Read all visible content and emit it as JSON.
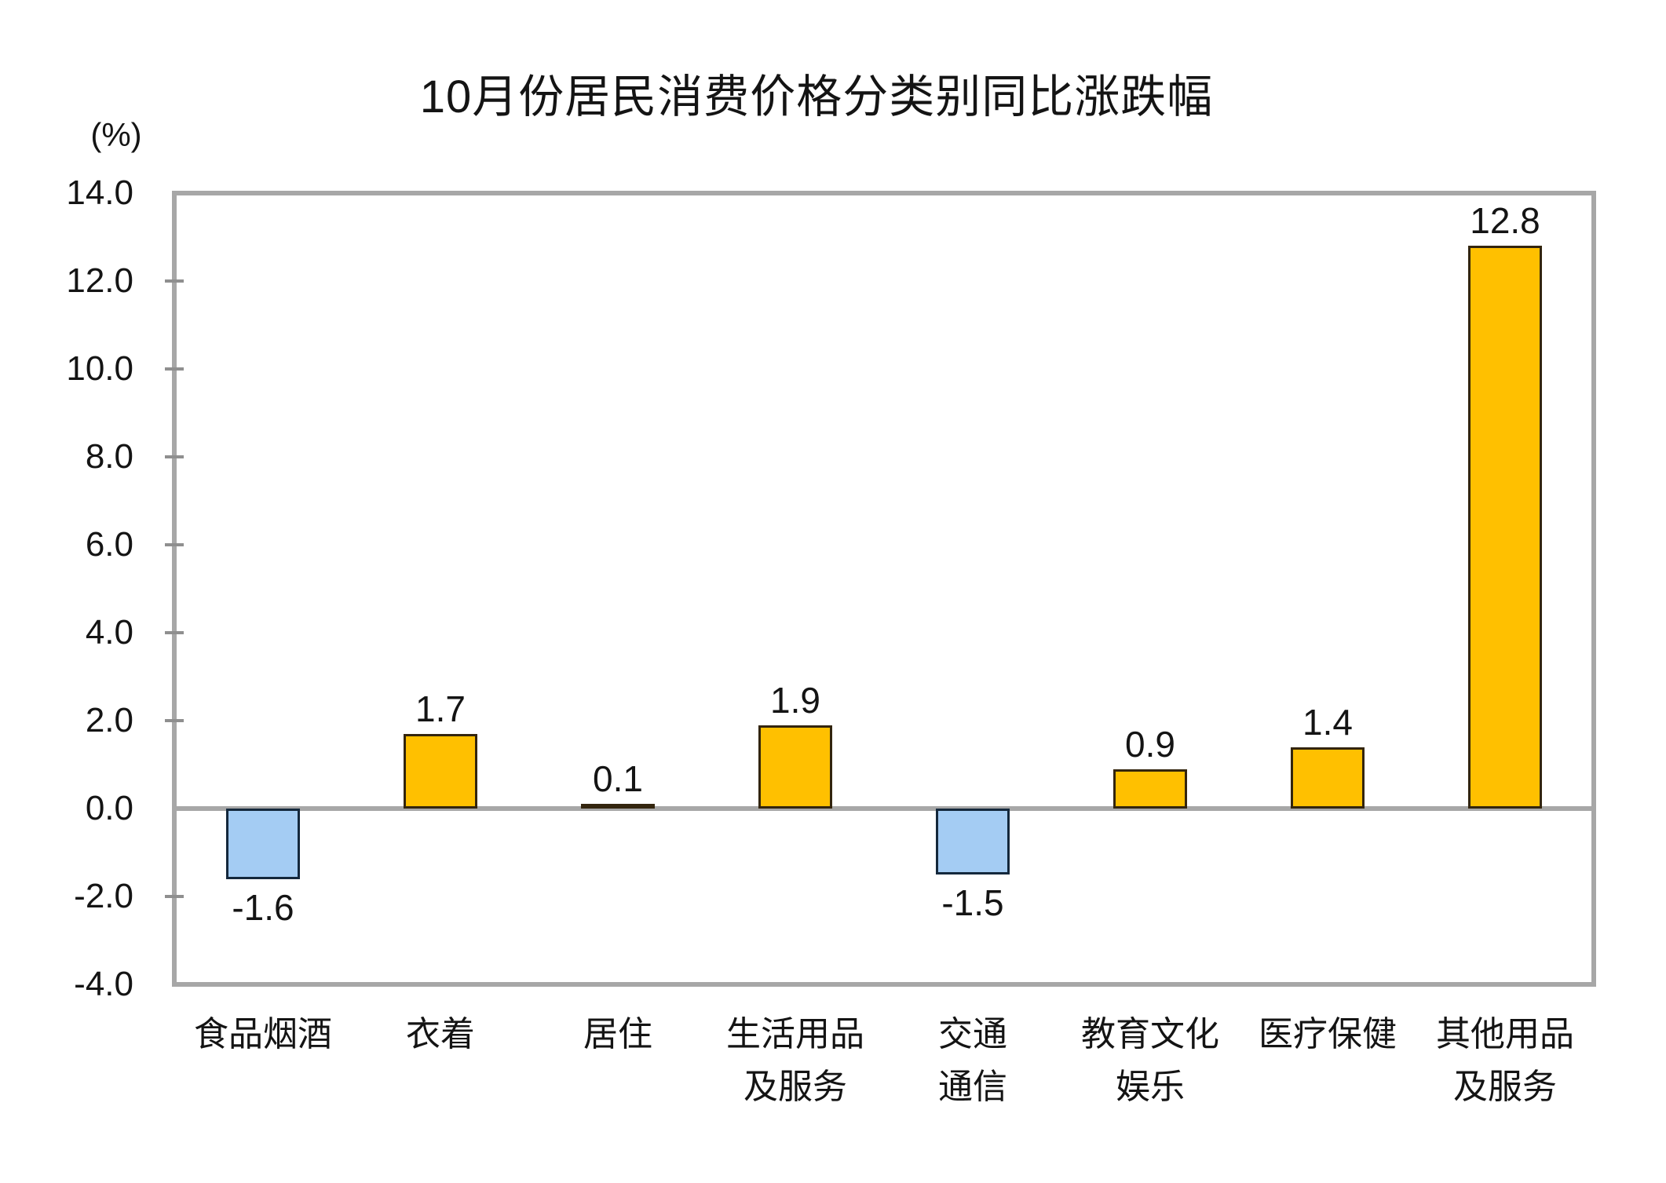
{
  "chart_data": {
    "type": "bar",
    "title": "10月份居民消费价格分类别同比涨跌幅",
    "unit_label": "(%)",
    "categories": [
      "食品烟酒",
      "衣着",
      "居住",
      "生活用品\n及服务",
      "交通\n通信",
      "教育文化\n娱乐",
      "医疗保健",
      "其他用品\n及服务"
    ],
    "values": [
      -1.6,
      1.7,
      0.1,
      1.9,
      -1.5,
      0.9,
      1.4,
      12.8
    ],
    "value_labels": [
      "-1.6",
      "1.7",
      "0.1",
      "1.9",
      "-1.5",
      "0.9",
      "1.4",
      "12.8"
    ],
    "y_ticks": [
      14,
      12,
      10,
      8,
      6,
      4,
      2,
      0,
      -2,
      -4
    ],
    "y_tick_labels": [
      "14.0",
      "12.0",
      "10.0",
      "8.0",
      "6.0",
      "4.0",
      "2.0",
      "0.0",
      "-2.0",
      "-4.0"
    ],
    "ylim": [
      -4,
      14
    ],
    "xlabel": "",
    "ylabel": "(%)",
    "grid": false,
    "legend_position": "none",
    "colors": {
      "positive_fill": "#FFC000",
      "negative_fill": "#A4CCF3",
      "positive_border": "#33250E",
      "negative_border": "#14283C",
      "axis": "#A7A7A7",
      "tick": "#8F8F8F",
      "text": "#141414"
    }
  }
}
